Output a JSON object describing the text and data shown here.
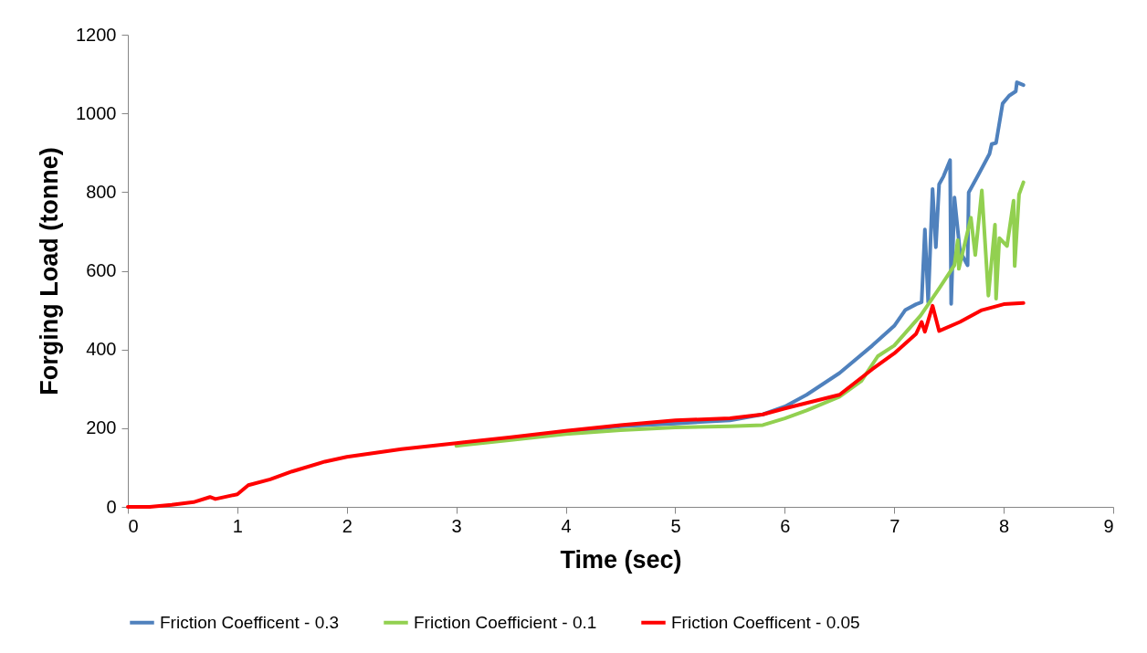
{
  "chart_data": {
    "type": "line",
    "xlabel": "Time (sec)",
    "ylabel": "Forging Load (tonne)",
    "xlim": [
      0,
      9
    ],
    "xticks": [
      0,
      1,
      2,
      3,
      4,
      5,
      6,
      7,
      8,
      9
    ],
    "ylim": [
      0,
      1200
    ],
    "yticks": [
      0,
      200,
      400,
      600,
      800,
      1000,
      1200
    ],
    "grid": false,
    "legend": "bottom",
    "marker": "none",
    "line_style": "solid",
    "series": [
      {
        "name": "Friction Coefficent - 0.3",
        "color": "#4f81bd",
        "x": [
          4.0,
          4.5,
          5.0,
          5.5,
          5.8,
          6.0,
          6.2,
          6.5,
          6.8,
          7.0,
          7.1,
          7.2,
          7.25,
          7.28,
          7.31,
          7.35,
          7.38,
          7.41,
          7.45,
          7.51,
          7.52,
          7.55,
          7.6,
          7.67,
          7.68,
          7.77,
          7.87,
          7.89,
          7.93,
          7.99,
          8.05,
          8.11,
          8.12,
          8.18
        ],
        "values": [
          190,
          205,
          212,
          220,
          235,
          255,
          285,
          340,
          410,
          460,
          500,
          515,
          520,
          705,
          520,
          808,
          660,
          820,
          840,
          881,
          516,
          786,
          650,
          614,
          799,
          845,
          897,
          922,
          925,
          1025,
          1045,
          1056,
          1079,
          1072
        ]
      },
      {
        "name": "Friction Coefficient - 0.1",
        "color": "#92d050",
        "x": [
          3.0,
          3.5,
          4.0,
          4.5,
          5.0,
          5.5,
          5.8,
          6.0,
          6.2,
          6.5,
          6.7,
          6.85,
          7.0,
          7.24,
          7.41,
          7.55,
          7.58,
          7.59,
          7.7,
          7.74,
          7.8,
          7.86,
          7.92,
          7.93,
          7.96,
          8.03,
          8.09,
          8.1,
          8.14,
          8.18
        ],
        "values": [
          155,
          170,
          185,
          195,
          202,
          205,
          208,
          225,
          245,
          280,
          320,
          383,
          410,
          486,
          555,
          614,
          678,
          605,
          735,
          640,
          804,
          537,
          717,
          529,
          683,
          663,
          778,
          612,
          794,
          825
        ]
      },
      {
        "name": "Friction Coefficent - 0.05",
        "color": "#ff0000",
        "x": [
          0,
          0.2,
          0.4,
          0.6,
          0.75,
          0.8,
          1.0,
          1.1,
          1.3,
          1.5,
          1.8,
          2.0,
          2.5,
          3.0,
          3.5,
          4.0,
          4.5,
          5.0,
          5.5,
          5.8,
          6.0,
          6.5,
          6.8,
          7.0,
          7.2,
          7.25,
          7.28,
          7.35,
          7.41,
          7.6,
          7.8,
          8.0,
          8.18
        ],
        "values": [
          0,
          0,
          5,
          12,
          25,
          20,
          32,
          55,
          70,
          90,
          115,
          127,
          147,
          162,
          177,
          193,
          208,
          220,
          225,
          235,
          250,
          285,
          350,
          390,
          440,
          470,
          445,
          511,
          447,
          470,
          500,
          515,
          518
        ]
      }
    ]
  }
}
